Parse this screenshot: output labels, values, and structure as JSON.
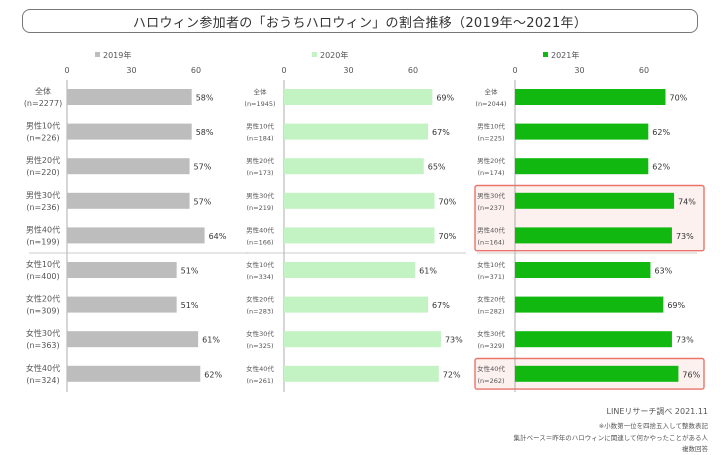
{
  "title": "ハロウィン参加者の「おうちハロウィン」の割合推移（2019年〜2021年）",
  "footer": {
    "source": "LINEリサーチ調べ 2021.11",
    "note1": "※小数第一位を四捨五入して整数表記",
    "note2": "集計ベース＝昨年のハロウィンに関連して何かやったことがある人",
    "note3": "複数回答"
  },
  "chart_data": [
    {
      "type": "bar",
      "orientation": "horizontal",
      "legend": "2019年",
      "color": "#bdbdbd",
      "xlim": [
        0,
        80
      ],
      "ticks": [
        0,
        30,
        60
      ],
      "categories": [
        {
          "label": "全体",
          "n": "(n=2277)"
        },
        {
          "label": "男性10代",
          "n": "(n=226)"
        },
        {
          "label": "男性20代",
          "n": "(n=220)"
        },
        {
          "label": "男性30代",
          "n": "(n=236)"
        },
        {
          "label": "男性40代",
          "n": "(n=199)"
        },
        {
          "label": "女性10代",
          "n": "(n=400)"
        },
        {
          "label": "女性20代",
          "n": "(n=309)"
        },
        {
          "label": "女性30代",
          "n": "(n=363)"
        },
        {
          "label": "女性40代",
          "n": "(n=324)"
        }
      ],
      "values": [
        58,
        58,
        57,
        57,
        64,
        51,
        51,
        61,
        62
      ],
      "value_suffix": "%",
      "highlight": []
    },
    {
      "type": "bar",
      "orientation": "horizontal",
      "legend": "2020年",
      "color": "#c3f2c3",
      "xlim": [
        0,
        80
      ],
      "ticks": [
        0,
        30,
        60
      ],
      "categories": [
        {
          "label": "全体",
          "n": "(n=1945)"
        },
        {
          "label": "男性10代",
          "n": "(n=184)"
        },
        {
          "label": "男性20代",
          "n": "(n=173)"
        },
        {
          "label": "男性30代",
          "n": "(n=219)"
        },
        {
          "label": "男性40代",
          "n": "(n=166)"
        },
        {
          "label": "女性10代",
          "n": "(n=334)"
        },
        {
          "label": "女性20代",
          "n": "(n=283)"
        },
        {
          "label": "女性30代",
          "n": "(n=325)"
        },
        {
          "label": "女性40代",
          "n": "(n=261)"
        }
      ],
      "values": [
        69,
        67,
        65,
        70,
        70,
        61,
        67,
        73,
        72
      ],
      "value_suffix": "%",
      "highlight": []
    },
    {
      "type": "bar",
      "orientation": "horizontal",
      "legend": "2021年",
      "color": "#10b810",
      "xlim": [
        0,
        80
      ],
      "ticks": [
        0,
        30,
        60
      ],
      "categories": [
        {
          "label": "全体",
          "n": "(n=2044)"
        },
        {
          "label": "男性10代",
          "n": "(n=225)"
        },
        {
          "label": "男性20代",
          "n": "(n=174)"
        },
        {
          "label": "男性30代",
          "n": "(n=237)"
        },
        {
          "label": "男性40代",
          "n": "(n=164)"
        },
        {
          "label": "女性10代",
          "n": "(n=371)"
        },
        {
          "label": "女性20代",
          "n": "(n=282)"
        },
        {
          "label": "女性30代",
          "n": "(n=329)"
        },
        {
          "label": "女性40代",
          "n": "(n=262)"
        }
      ],
      "values": [
        70,
        62,
        62,
        74,
        73,
        63,
        69,
        73,
        76
      ],
      "value_suffix": "%",
      "highlight": [
        [
          3,
          4
        ],
        [
          8,
          8
        ]
      ]
    }
  ],
  "colors": {
    "highlight_border": "#e8746a",
    "highlight_fill": "#fdf1f0",
    "divider": "#bbbbbb",
    "grid": "#999999"
  }
}
